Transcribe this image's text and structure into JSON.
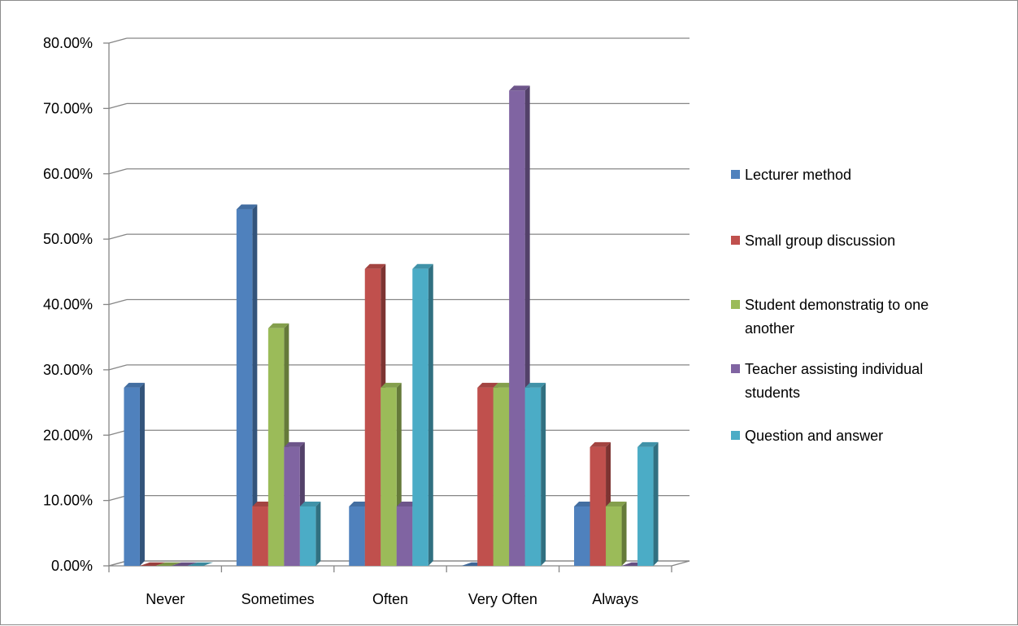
{
  "chart_data": {
    "type": "bar",
    "title": "",
    "xlabel": "",
    "ylabel": "",
    "categories": [
      "Never",
      "Sometimes",
      "Often",
      "Very Often",
      "Always"
    ],
    "series": [
      {
        "name": "Lecturer method",
        "color": "#4F81BD",
        "values": [
          27.27,
          54.55,
          9.09,
          0.0,
          9.09
        ]
      },
      {
        "name": "Small group discussion",
        "color": "#C0504D",
        "values": [
          0.0,
          9.09,
          45.45,
          27.27,
          18.18
        ]
      },
      {
        "name": "Student demonstratig to one another",
        "color": "#9BBB59",
        "values": [
          0.0,
          36.36,
          27.27,
          27.27,
          9.09
        ]
      },
      {
        "name": "Teacher assisting individual students",
        "color": "#8064A2",
        "values": [
          0.0,
          18.18,
          9.09,
          72.73,
          0.0
        ]
      },
      {
        "name": "Question and answer",
        "color": "#4BACC6",
        "values": [
          0.0,
          9.09,
          45.45,
          27.27,
          18.18
        ]
      }
    ],
    "ylim": [
      0,
      80
    ],
    "yticks": [
      "0.00%",
      "10.00%",
      "20.00%",
      "30.00%",
      "40.00%",
      "50.00%",
      "60.00%",
      "70.00%",
      "80.00%"
    ],
    "grid": true,
    "legend_position": "right",
    "style": "3d-clustered-column"
  }
}
